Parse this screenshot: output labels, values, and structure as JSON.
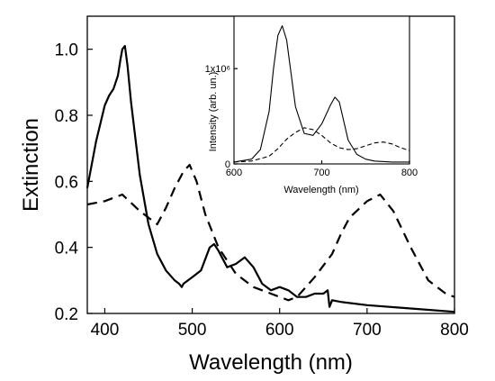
{
  "chart_data": [
    {
      "type": "line",
      "xlabel": "Wavelength (nm)",
      "ylabel": "Extinction",
      "xlim": [
        380,
        800
      ],
      "ylim": [
        0.2,
        1.1
      ],
      "xticks": [
        400,
        500,
        600,
        700,
        800
      ],
      "yticks": [
        0.2,
        0.4,
        0.6,
        0.8,
        1.0
      ],
      "xtick_labels": [
        "400",
        "500",
        "600",
        "700",
        "800"
      ],
      "ytick_labels": [
        "0.2",
        "0.4",
        "0.6",
        "0.8",
        "1.0"
      ],
      "grid": false,
      "series": [
        {
          "style": "solid",
          "x": [
            380,
            390,
            400,
            405,
            410,
            415,
            418,
            420,
            423,
            426,
            430,
            440,
            450,
            460,
            470,
            480,
            485,
            488,
            490,
            500,
            510,
            520,
            525,
            530,
            540,
            550,
            560,
            570,
            580,
            590,
            600,
            610,
            620,
            630,
            640,
            650,
            655,
            657,
            660,
            670,
            700,
            750,
            800
          ],
          "y": [
            0.58,
            0.72,
            0.83,
            0.86,
            0.88,
            0.92,
            0.97,
            1.0,
            1.01,
            0.95,
            0.84,
            0.62,
            0.47,
            0.38,
            0.33,
            0.3,
            0.29,
            0.28,
            0.29,
            0.31,
            0.33,
            0.4,
            0.41,
            0.39,
            0.34,
            0.35,
            0.37,
            0.34,
            0.29,
            0.27,
            0.28,
            0.27,
            0.25,
            0.25,
            0.26,
            0.26,
            0.27,
            0.22,
            0.24,
            0.235,
            0.225,
            0.215,
            0.205
          ]
        },
        {
          "style": "dashed",
          "x": [
            380,
            400,
            420,
            440,
            460,
            470,
            480,
            490,
            497,
            505,
            515,
            530,
            550,
            570,
            590,
            600,
            610,
            620,
            640,
            660,
            670,
            680,
            700,
            715,
            730,
            750,
            770,
            790,
            800
          ],
          "y": [
            0.53,
            0.54,
            0.56,
            0.51,
            0.47,
            0.52,
            0.58,
            0.63,
            0.65,
            0.6,
            0.5,
            0.4,
            0.32,
            0.28,
            0.26,
            0.25,
            0.24,
            0.25,
            0.31,
            0.38,
            0.44,
            0.49,
            0.54,
            0.56,
            0.51,
            0.4,
            0.3,
            0.26,
            0.25
          ]
        }
      ]
    },
    {
      "type": "line",
      "xlabel": "Wavelength (nm)",
      "ylabel": "Intensity (arb. un.)",
      "xlim": [
        600,
        800
      ],
      "ylim": [
        0,
        1.55
      ],
      "xticks": [
        600,
        700,
        800
      ],
      "xtick_labels": [
        "600",
        "700",
        "800"
      ],
      "yticks": [
        0,
        1.0
      ],
      "ytick_labels": [
        "0",
        "1x10⁶"
      ],
      "grid": false,
      "series": [
        {
          "style": "solid",
          "x": [
            600,
            620,
            630,
            640,
            645,
            650,
            655,
            660,
            665,
            670,
            680,
            690,
            700,
            710,
            715,
            720,
            725,
            730,
            740,
            750,
            760,
            780,
            800
          ],
          "y": [
            0.02,
            0.05,
            0.15,
            0.55,
            1.0,
            1.35,
            1.45,
            1.3,
            0.95,
            0.6,
            0.32,
            0.3,
            0.42,
            0.62,
            0.7,
            0.65,
            0.45,
            0.25,
            0.1,
            0.05,
            0.03,
            0.02,
            0.02
          ]
        },
        {
          "style": "dashed",
          "x": [
            600,
            620,
            640,
            650,
            660,
            670,
            680,
            690,
            700,
            710,
            720,
            730,
            740,
            750,
            760,
            770,
            780,
            790,
            800
          ],
          "y": [
            0.02,
            0.03,
            0.08,
            0.16,
            0.26,
            0.33,
            0.38,
            0.36,
            0.3,
            0.22,
            0.17,
            0.15,
            0.16,
            0.19,
            0.22,
            0.23,
            0.21,
            0.17,
            0.14
          ]
        }
      ]
    }
  ]
}
